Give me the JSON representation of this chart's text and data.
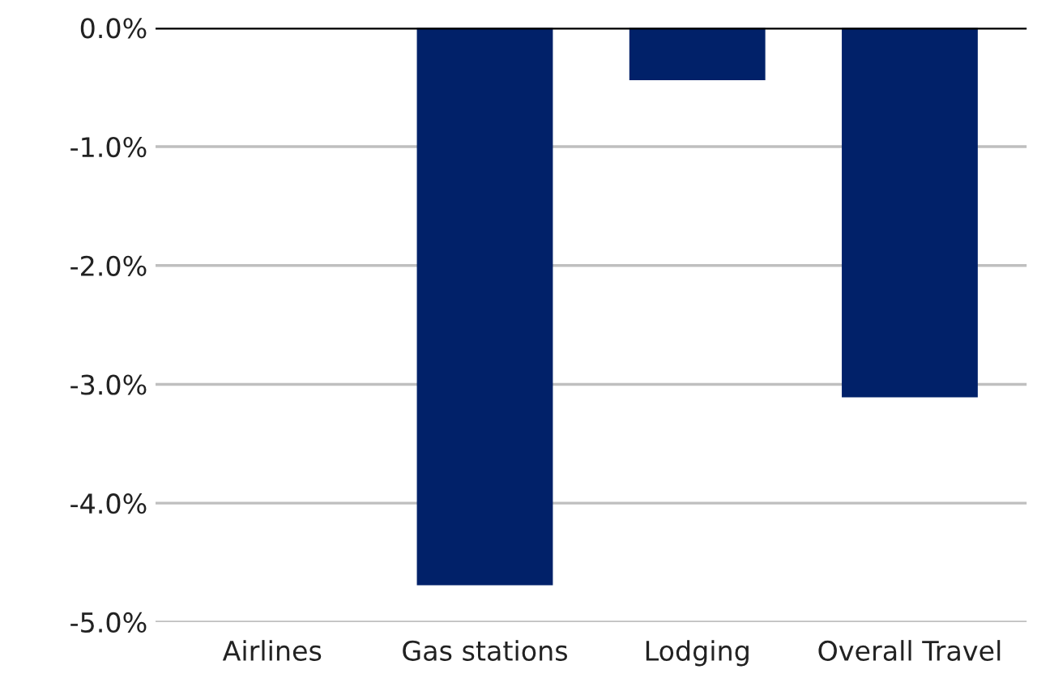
{
  "chart_data": {
    "type": "bar",
    "categories": [
      "Airlines",
      "Gas stations",
      "Lodging",
      "Overall Travel"
    ],
    "values": [
      0,
      -4.69,
      -0.44,
      -3.11
    ],
    "color": "#012169",
    "ylim": [
      -5,
      0
    ],
    "yticks": [
      {
        "value": 0,
        "label": "0.0%"
      },
      {
        "value": -1,
        "label": "-1.0%"
      },
      {
        "value": -2,
        "label": "-2.0%"
      },
      {
        "value": -3,
        "label": "-3.0%"
      },
      {
        "value": -4,
        "label": "-4.0%"
      },
      {
        "value": -5,
        "label": "-5.0%"
      }
    ],
    "grid": "y",
    "ref_lines": [
      {
        "axis": "y",
        "value": 0,
        "color": "#000000"
      }
    ]
  }
}
